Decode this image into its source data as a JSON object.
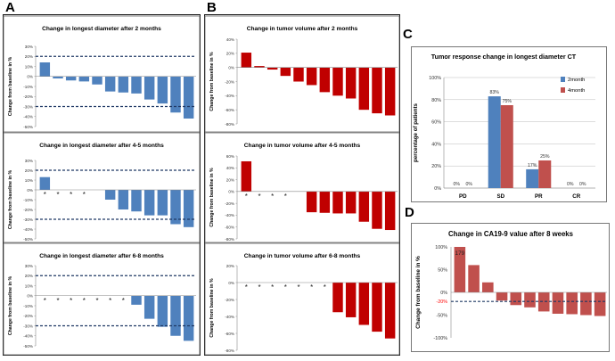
{
  "panel_labels": {
    "a": "A",
    "b": "B",
    "c": "C",
    "d": "D"
  },
  "colors": {
    "blue": "#4f81bd",
    "red": "#c00000",
    "red_light": "#c0504d",
    "dash": "#1f3864",
    "red_text": "#ff0000"
  },
  "chart_data": [
    {
      "id": "A1",
      "type": "bar",
      "title": "Change in longest diameter after 2  months",
      "ylabel": "Change  from baseline in %",
      "ylim": [
        -50,
        30
      ],
      "yticks": [
        "30%",
        "20%",
        "10%",
        "0%",
        "-10%",
        "-20%",
        "-30%",
        "-40%",
        "-50%"
      ],
      "reference_lines": [
        20,
        -30
      ],
      "values": [
        14,
        -2,
        -4,
        -5,
        -8,
        -15,
        -16,
        -17,
        -23,
        -27,
        -36,
        -42
      ],
      "asterisk_labels": []
    },
    {
      "id": "A2",
      "type": "bar",
      "title": "Change in longest diameter after 4-5 months",
      "ylabel": "Change from baseline in %",
      "ylim": [
        -50,
        30
      ],
      "yticks": [
        "30%",
        "20%",
        "10%",
        "0%",
        "-10%",
        "-20%",
        "-30%",
        "-40%",
        "-50%"
      ],
      "reference_lines": [
        20,
        -30
      ],
      "values": [
        13,
        0,
        0,
        0,
        0,
        -10,
        -20,
        -22,
        -26,
        -26,
        -35,
        -38
      ],
      "asterisk_labels": [
        "*",
        "*",
        "*",
        "*"
      ]
    },
    {
      "id": "A3",
      "type": "bar",
      "title": "Change in longest diameter after 6-8 months",
      "ylabel": "Change from baseline in %",
      "ylim": [
        -50,
        30
      ],
      "yticks": [
        "30%",
        "20%",
        "10%",
        "0%",
        "-10%",
        "-20%",
        "-30%",
        "-40%",
        "-50%"
      ],
      "reference_lines": [
        20,
        -30
      ],
      "values": [
        0,
        0,
        0,
        0,
        0,
        0,
        0,
        -9,
        -23,
        -31,
        -40,
        -45
      ],
      "asterisk_labels": [
        "*",
        "*",
        "*",
        "*",
        "*",
        "*",
        "*"
      ]
    },
    {
      "id": "B1",
      "type": "bar",
      "title": "Change in tumor volume after 2 months",
      "ylabel": "Change  from baseline in %",
      "ylim": [
        -80,
        40
      ],
      "yticks": [
        "40%",
        "20%",
        "0%",
        "-20%",
        "-40%",
        "-60%",
        "-80%"
      ],
      "values": [
        21,
        2,
        -3,
        -12,
        -20,
        -25,
        -35,
        -40,
        -44,
        -60,
        -65,
        -68
      ],
      "asterisk_labels": []
    },
    {
      "id": "B2",
      "type": "bar",
      "title": "Change in tumor volume after 4-5 months",
      "ylabel": "Change from baseline in %",
      "ylim": [
        -80,
        60
      ],
      "yticks": [
        "60%",
        "40%",
        "20%",
        "0%",
        "-20%",
        "-40%",
        "-60%",
        "-80%"
      ],
      "values": [
        51,
        0,
        0,
        0,
        0,
        -35,
        -36,
        -37,
        -37,
        -51,
        -63,
        -65
      ],
      "asterisk_labels": [
        "*",
        "*",
        "*",
        "*"
      ]
    },
    {
      "id": "B3",
      "type": "bar",
      "title": "Change in tumor volume after 6-8 months",
      "ylabel": "Change from baseline in %",
      "ylim": [
        -80,
        20
      ],
      "yticks": [
        "20%",
        "0%",
        "-20%",
        "-40%",
        "-60%",
        "-80%"
      ],
      "values": [
        0,
        0,
        0,
        0,
        0,
        0,
        0,
        -35,
        -41,
        -50,
        -58,
        -66
      ],
      "asterisk_labels": [
        "*",
        "*",
        "*",
        "*",
        "*",
        "*",
        "*"
      ]
    },
    {
      "id": "C",
      "type": "bar",
      "title": "Tumor response change in longest diameter CT",
      "ylabel": "percentage of patients",
      "ylim": [
        0,
        100
      ],
      "yticks": [
        "100%",
        "80%",
        "60%",
        "40%",
        "20%",
        "0%"
      ],
      "categories": [
        "PD",
        "SD",
        "PR",
        "CR"
      ],
      "series": [
        {
          "name": "2month",
          "values": [
            0,
            83,
            17,
            0
          ],
          "labels": [
            "0%",
            "83%",
            "17%",
            "0%"
          ]
        },
        {
          "name": "4month",
          "values": [
            0,
            75,
            25,
            0
          ],
          "labels": [
            "0%",
            "75%",
            "25%",
            "0%"
          ]
        }
      ]
    },
    {
      "id": "D",
      "type": "bar",
      "title": "Change in CA19-9 value after 8 weeks",
      "ylabel": "Change from baseline in %",
      "ylim": [
        -100,
        100
      ],
      "yticks": [
        "100%",
        "50%",
        "0%",
        "-50%",
        "-100%"
      ],
      "reference_label": "-20%",
      "reference_lines": [
        -20
      ],
      "values": [
        100,
        60,
        22,
        -18,
        -28,
        -33,
        -42,
        -47,
        -48,
        -50,
        -52
      ],
      "annotation": "179"
    }
  ]
}
